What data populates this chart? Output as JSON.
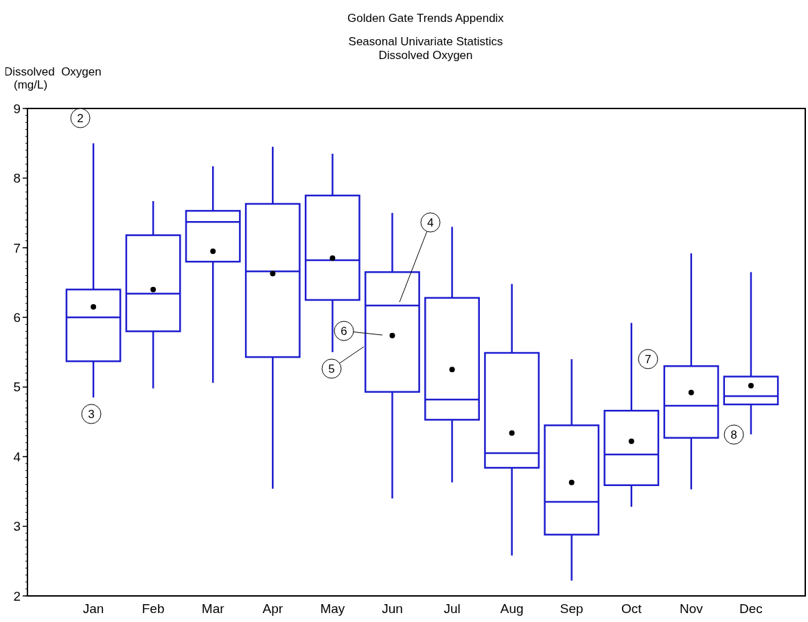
{
  "chart_data": {
    "type": "box",
    "title": "Golden Gate Trends Appendix",
    "subtitle": "Seasonal Univariate Statistics\nDissolved Oxygen",
    "ylabel": "Dissolved  Oxygen\n(mg/L)",
    "categories": [
      "Jan",
      "Feb",
      "Mar",
      "Apr",
      "May",
      "Jun",
      "Jul",
      "Aug",
      "Sep",
      "Oct",
      "Nov",
      "Dec"
    ],
    "ylim": [
      2,
      9
    ],
    "yticks": [
      2,
      3,
      4,
      5,
      6,
      7,
      8,
      9
    ],
    "grid": false,
    "series": [
      {
        "color": "#1c1cd0",
        "boxes": [
          {
            "low": 4.85,
            "q1": 5.37,
            "median": 6.0,
            "q3": 6.4,
            "high": 8.5,
            "mean": 6.15
          },
          {
            "low": 4.98,
            "q1": 5.8,
            "median": 6.34,
            "q3": 7.18,
            "high": 7.67,
            "mean": 6.4
          },
          {
            "low": 5.06,
            "q1": 6.8,
            "median": 7.37,
            "q3": 7.53,
            "high": 8.17,
            "mean": 6.95
          },
          {
            "low": 3.54,
            "q1": 5.43,
            "median": 6.66,
            "q3": 7.63,
            "high": 8.45,
            "mean": 6.63
          },
          {
            "low": 5.5,
            "q1": 6.25,
            "median": 6.82,
            "q3": 7.75,
            "high": 8.35,
            "mean": 6.85
          },
          {
            "low": 3.4,
            "q1": 4.93,
            "median": 6.17,
            "q3": 6.65,
            "high": 7.5,
            "mean": 5.74
          },
          {
            "low": 3.63,
            "q1": 4.53,
            "median": 4.82,
            "q3": 6.28,
            "high": 7.3,
            "mean": 5.25
          },
          {
            "low": 2.58,
            "q1": 3.84,
            "median": 4.05,
            "q3": 5.49,
            "high": 6.48,
            "mean": 4.34
          },
          {
            "low": 2.22,
            "q1": 2.88,
            "median": 3.35,
            "q3": 4.45,
            "high": 5.4,
            "mean": 3.63
          },
          {
            "low": 3.28,
            "q1": 3.59,
            "median": 4.03,
            "q3": 4.66,
            "high": 5.92,
            "mean": 4.22
          },
          {
            "low": 3.53,
            "q1": 4.27,
            "median": 4.73,
            "q3": 5.3,
            "high": 6.92,
            "mean": 4.92
          },
          {
            "low": 4.32,
            "q1": 4.75,
            "median": 4.87,
            "q3": 5.15,
            "high": 6.65,
            "mean": 5.02
          }
        ]
      }
    ],
    "annotations": [
      "2",
      "3",
      "4",
      "5",
      "6",
      "7",
      "8"
    ]
  }
}
